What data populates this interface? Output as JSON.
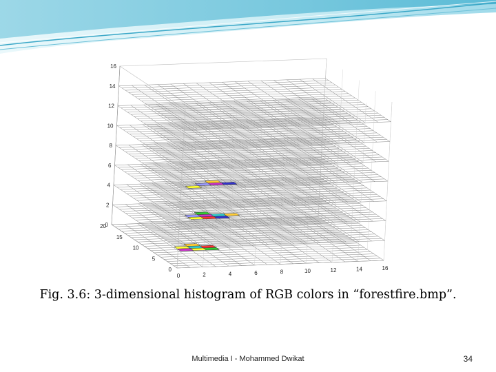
{
  "slide": {
    "caption": "Fig. 3.6: 3-dimensional histogram of RGB colors in “forestfire.bmp”.",
    "footer": "Multimedia I - Mohammed Dwikat",
    "page_number": "34",
    "accent_colors": {
      "banner_light": "#d8f1f7",
      "banner_mid": "#8fd2e4",
      "banner_dark": "#3aa7c7"
    }
  },
  "chart_data": {
    "type": "3d-histogram",
    "grid": true,
    "z_ticks": [
      "0",
      "2",
      "4",
      "6",
      "8",
      "10",
      "12",
      "14",
      "16"
    ],
    "x_ticks": [
      "0",
      "2",
      "4",
      "6",
      "8",
      "10",
      "12",
      "14",
      "16"
    ],
    "y_ticks": [
      "0",
      "5",
      "10",
      "15",
      "20"
    ],
    "colors": [
      "#ffff33",
      "#33cccc",
      "#ff3333",
      "#3333cc",
      "#cc33cc",
      "#33cc33",
      "#ffcc33",
      "#9999ff"
    ]
  }
}
